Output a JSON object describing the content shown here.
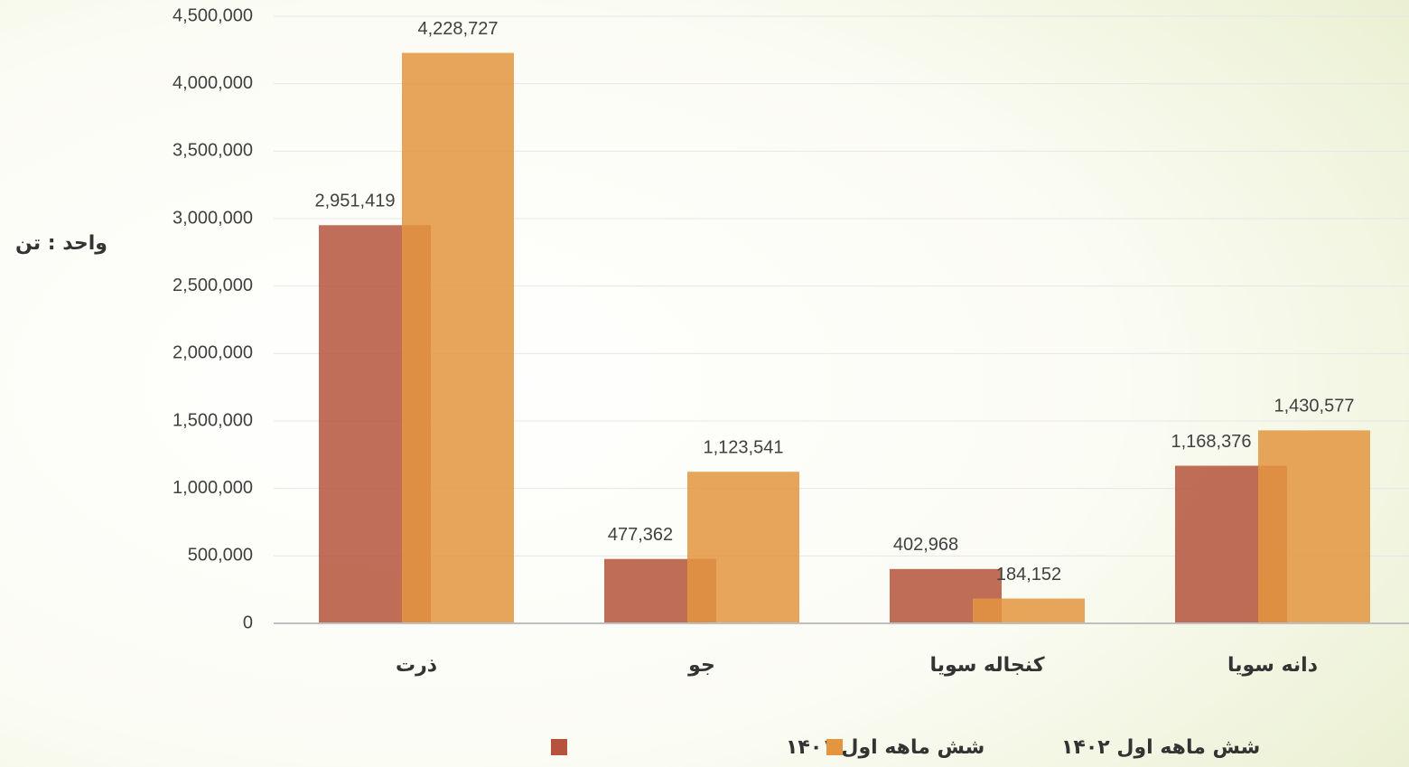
{
  "chart_data": {
    "type": "bar",
    "y_label": "واحد : تن",
    "categories": [
      "ذرت",
      "جو",
      "کنجاله سویا",
      "دانه سویا"
    ],
    "series": [
      {
        "name": "شش ماهه اول ۱۴۰۱",
        "color": "#b5533c",
        "values": [
          2951419,
          477362,
          402968,
          1168376
        ],
        "value_labels": [
          "2,951,419",
          "477,362",
          "402,968",
          "1,168,376"
        ]
      },
      {
        "name": "شش ماهه اول ۱۴۰۲",
        "color": "#e3953f",
        "values": [
          4228727,
          1123541,
          184152,
          1430577
        ],
        "value_labels": [
          "4,228,727",
          "1,123,541",
          "184,152",
          "1,430,577"
        ]
      }
    ],
    "ylim": [
      0,
      4500000
    ],
    "yticks": [
      0,
      {
        "value": 500000,
        "label": "500,000"
      },
      {
        "value": 1000000,
        "label": "1,000,000"
      },
      {
        "value": 1500000,
        "label": "1,500,000"
      },
      {
        "value": 2000000,
        "label": "2,000,000"
      },
      {
        "value": 2500000,
        "label": "2,500,000"
      },
      {
        "value": 3000000,
        "label": "3,000,000"
      },
      {
        "value": 3500000,
        "label": "3,500,000"
      },
      {
        "value": 4000000,
        "label": "4,000,000"
      },
      {
        "value": 4500000,
        "label": "4,500,000"
      }
    ],
    "grid": true
  }
}
